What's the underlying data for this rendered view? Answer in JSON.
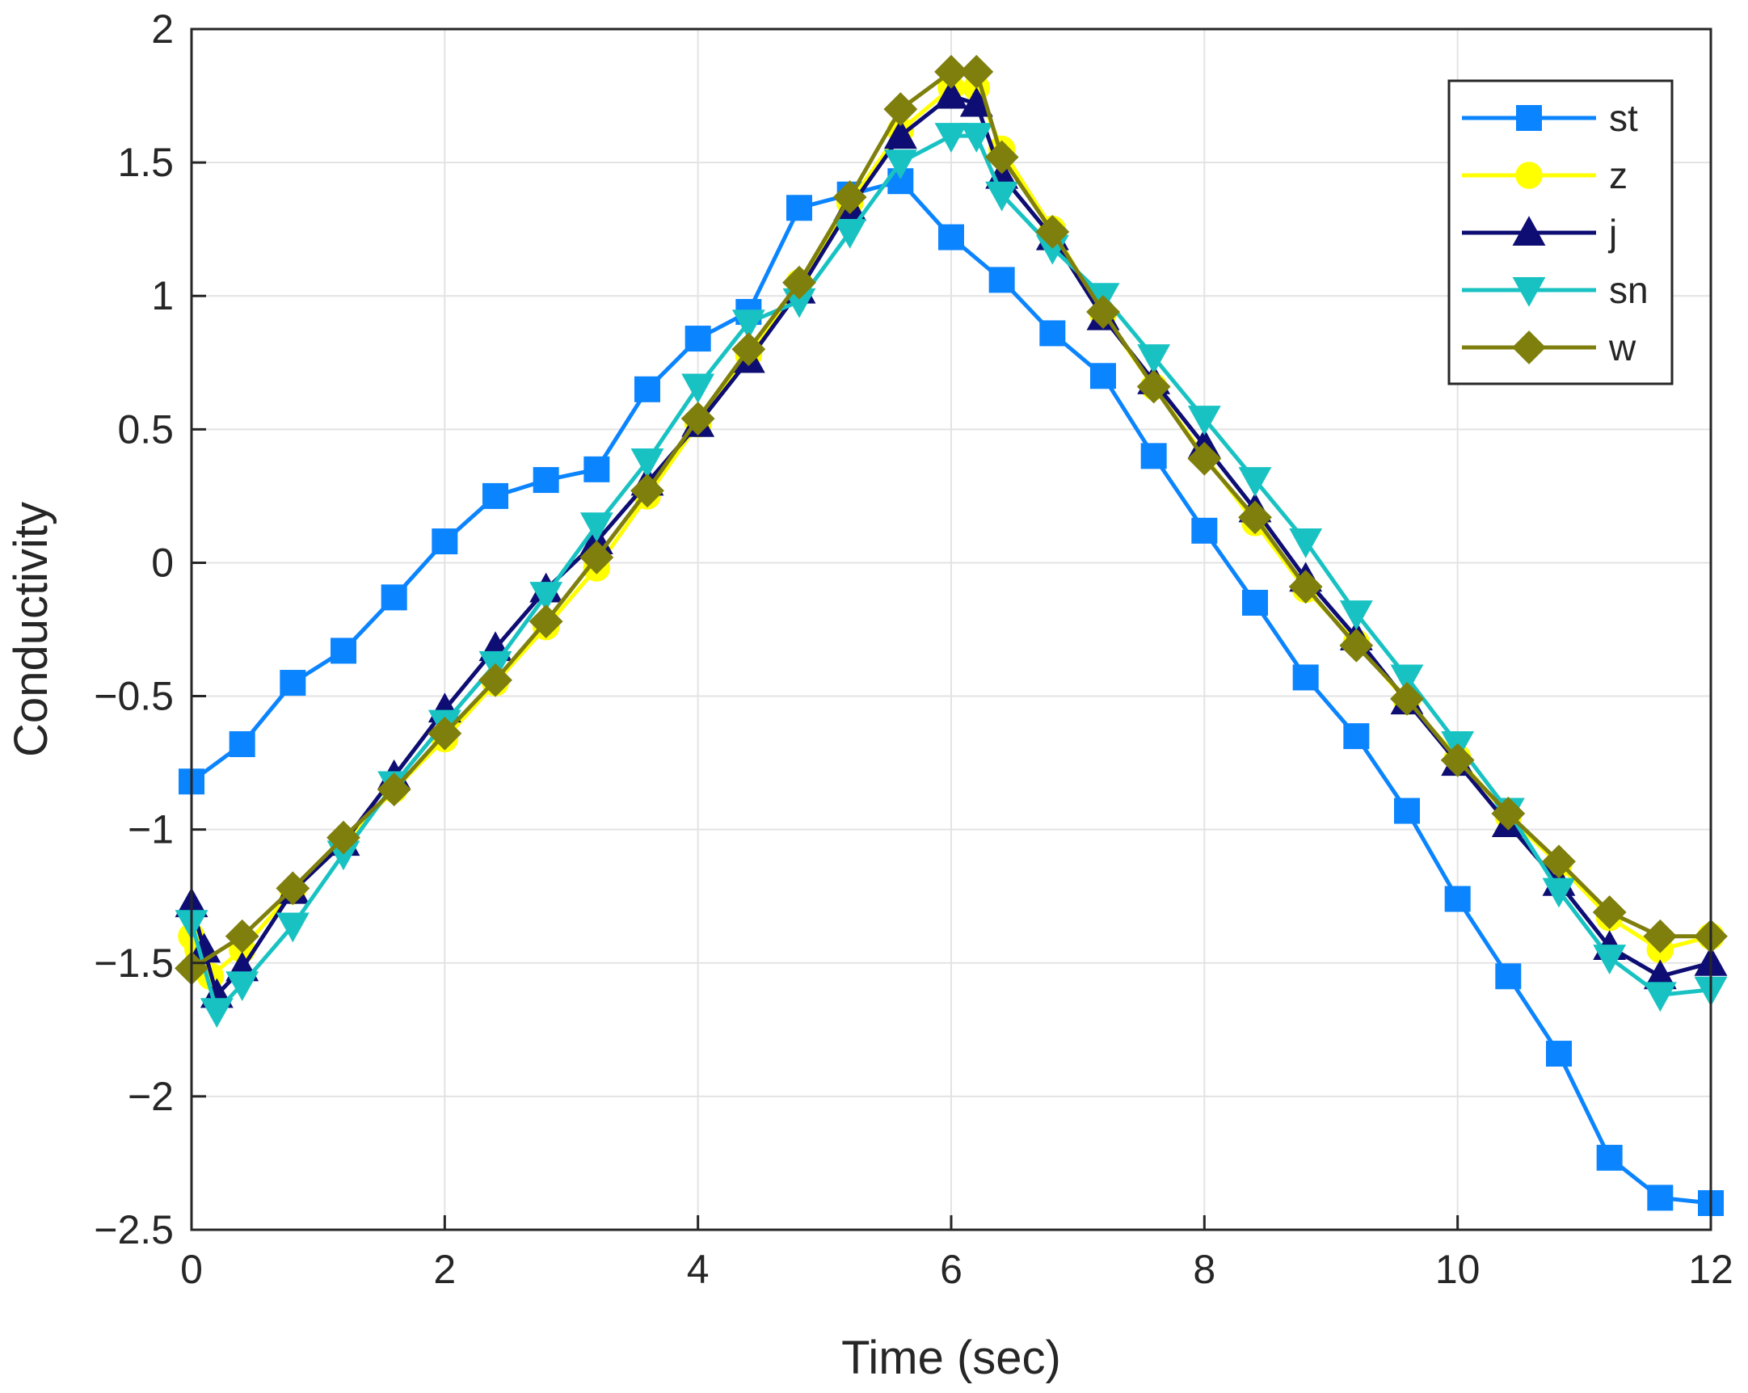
{
  "chart_data": {
    "type": "line",
    "title": "",
    "xlabel": "Time (sec)",
    "ylabel": "Conductivity",
    "xlim": [
      0,
      12
    ],
    "ylim": [
      -2.5,
      2
    ],
    "xticks": [
      0,
      2,
      4,
      6,
      8,
      10,
      12
    ],
    "xtick_labels": [
      "0",
      "2",
      "4",
      "6",
      "8",
      "10",
      "12"
    ],
    "yticks": [
      -2.5,
      -2,
      -1.5,
      -1,
      -0.5,
      0,
      0.5,
      1,
      1.5,
      2
    ],
    "ytick_labels": [
      "−2.5",
      "−2",
      "−1.5",
      "−1",
      "−0.5",
      "0",
      "0.5",
      "1",
      "1.5",
      "2"
    ],
    "grid": true,
    "legend_position": "top-right",
    "series": [
      {
        "name": "st",
        "color": "#0b84ff",
        "marker": "square",
        "x": [
          0,
          0.4,
          0.8,
          1.2,
          1.6,
          2.0,
          2.4,
          2.8,
          3.2,
          3.6,
          4.0,
          4.4,
          4.8,
          5.2,
          5.6,
          6.0,
          6.4,
          6.8,
          7.2,
          7.6,
          8.0,
          8.4,
          8.8,
          9.2,
          9.6,
          10.0,
          10.4,
          10.8,
          11.2,
          11.6,
          12.0
        ],
        "y": [
          -0.82,
          -0.68,
          -0.45,
          -0.33,
          -0.13,
          0.08,
          0.25,
          0.31,
          0.35,
          0.65,
          0.84,
          0.94,
          1.33,
          1.38,
          1.43,
          1.22,
          1.06,
          0.86,
          0.7,
          0.4,
          0.12,
          -0.15,
          -0.43,
          -0.65,
          -0.93,
          -1.26,
          -1.55,
          -1.84,
          -2.23,
          -2.38,
          -2.4
        ]
      },
      {
        "name": "z",
        "color": "#ffff00",
        "marker": "circle",
        "x": [
          0,
          0.05,
          0.15,
          0.4,
          0.8,
          1.2,
          1.6,
          2.0,
          2.4,
          2.8,
          3.2,
          3.6,
          4.0,
          4.4,
          4.8,
          5.2,
          5.6,
          6.0,
          6.2,
          6.4,
          6.8,
          7.2,
          7.6,
          8.0,
          8.4,
          8.8,
          9.2,
          9.6,
          10.0,
          10.4,
          10.8,
          11.2,
          11.6,
          12.0
        ],
        "y": [
          -1.4,
          -1.45,
          -1.55,
          -1.45,
          -1.23,
          -1.05,
          -0.85,
          -0.66,
          -0.45,
          -0.24,
          -0.02,
          0.25,
          0.52,
          0.78,
          1.05,
          1.35,
          1.62,
          1.78,
          1.78,
          1.55,
          1.25,
          0.93,
          0.66,
          0.4,
          0.15,
          -0.1,
          -0.3,
          -0.52,
          -0.73,
          -0.95,
          -1.13,
          -1.33,
          -1.45,
          -1.4
        ]
      },
      {
        "name": "j",
        "color": "#0d0d73",
        "marker": "triangle-up",
        "x": [
          0,
          0.1,
          0.2,
          0.4,
          0.8,
          1.2,
          1.6,
          2.0,
          2.4,
          2.8,
          3.2,
          3.6,
          4.0,
          4.4,
          4.8,
          5.2,
          5.6,
          6.0,
          6.2,
          6.4,
          6.8,
          7.2,
          7.6,
          8.0,
          8.4,
          8.8,
          9.2,
          9.6,
          10.0,
          10.4,
          10.8,
          11.2,
          11.6,
          12.0
        ],
        "y": [
          -1.28,
          -1.45,
          -1.62,
          -1.52,
          -1.23,
          -1.05,
          -0.8,
          -0.55,
          -0.32,
          -0.1,
          0.08,
          0.3,
          0.52,
          0.76,
          1.02,
          1.33,
          1.6,
          1.75,
          1.72,
          1.45,
          1.22,
          0.92,
          0.68,
          0.44,
          0.2,
          -0.06,
          -0.28,
          -0.52,
          -0.75,
          -0.98,
          -1.2,
          -1.44,
          -1.55,
          -1.5
        ]
      },
      {
        "name": "sn",
        "color": "#19c2c2",
        "marker": "triangle-down",
        "x": [
          0,
          0.2,
          0.4,
          0.8,
          1.2,
          1.6,
          2.0,
          2.4,
          2.8,
          3.2,
          3.6,
          4.0,
          4.4,
          4.8,
          5.2,
          5.6,
          6.0,
          6.2,
          6.4,
          6.8,
          7.2,
          7.6,
          8.0,
          8.4,
          8.8,
          9.2,
          9.6,
          10.0,
          10.4,
          10.8,
          11.2,
          11.6,
          12.0
        ],
        "y": [
          -1.35,
          -1.68,
          -1.58,
          -1.36,
          -1.09,
          -0.83,
          -0.6,
          -0.38,
          -0.12,
          0.14,
          0.38,
          0.66,
          0.9,
          0.98,
          1.24,
          1.5,
          1.6,
          1.6,
          1.38,
          1.18,
          1.0,
          0.77,
          0.54,
          0.31,
          0.08,
          -0.19,
          -0.43,
          -0.68,
          -0.93,
          -1.23,
          -1.48,
          -1.62,
          -1.6
        ]
      },
      {
        "name": "w",
        "color": "#7f7f0d",
        "marker": "diamond",
        "x": [
          0,
          0.4,
          0.8,
          1.2,
          1.6,
          2.0,
          2.4,
          2.8,
          3.2,
          3.6,
          4.0,
          4.4,
          4.8,
          5.2,
          5.6,
          6.0,
          6.2,
          6.4,
          6.8,
          7.2,
          7.6,
          8.0,
          8.4,
          8.8,
          9.2,
          9.6,
          10.0,
          10.4,
          10.8,
          11.2,
          11.6,
          12.0
        ],
        "y": [
          -1.52,
          -1.4,
          -1.22,
          -1.03,
          -0.85,
          -0.64,
          -0.44,
          -0.22,
          0.02,
          0.27,
          0.54,
          0.8,
          1.05,
          1.37,
          1.7,
          1.84,
          1.84,
          1.52,
          1.24,
          0.94,
          0.66,
          0.39,
          0.17,
          -0.09,
          -0.31,
          -0.51,
          -0.74,
          -0.94,
          -1.12,
          -1.31,
          -1.4,
          -1.4
        ]
      }
    ]
  }
}
